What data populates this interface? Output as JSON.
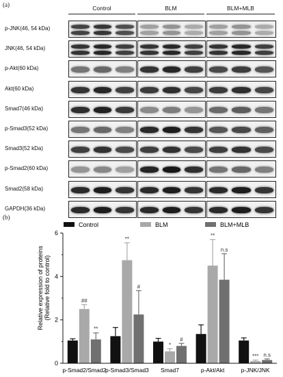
{
  "panel_a_label": "(a)",
  "panel_b_label": "(b)",
  "blot": {
    "groups": [
      "Control",
      "BLM",
      "BLM+MLB"
    ],
    "rows": [
      {
        "label": "p-JNK(46, 54 kDa)",
        "double": true,
        "darkness": [
          0.78,
          0.35,
          0.35
        ]
      },
      {
        "label": "JNK(46, 54 kDa)",
        "double": true,
        "darkness": [
          0.85,
          0.85,
          0.85
        ]
      },
      {
        "label": "p-Akt(60 kDa)",
        "double": false,
        "darkness": [
          0.55,
          0.85,
          0.75
        ]
      },
      {
        "label": "Akt(60 kDa)",
        "double": false,
        "darkness": [
          0.85,
          0.82,
          0.82
        ]
      },
      {
        "label": "Smad7(46 kDa)",
        "double": false,
        "darkness": [
          0.88,
          0.45,
          0.6
        ]
      },
      {
        "label": "p-Smad3(52 kDa)",
        "double": false,
        "darkness": [
          0.55,
          0.9,
          0.7
        ]
      },
      {
        "label": "Smad3(52 kDa)",
        "double": false,
        "darkness": [
          0.8,
          0.8,
          0.8
        ]
      },
      {
        "label": "p-Smad2(60 kDa)",
        "double": false,
        "darkness": [
          0.4,
          0.92,
          0.55
        ]
      },
      {
        "label": "Smad2(58 kDa)",
        "double": false,
        "darkness": [
          0.9,
          0.9,
          0.9
        ]
      },
      {
        "label": "GAPDH(36 kDa)",
        "double": false,
        "darkness": [
          0.9,
          0.9,
          0.9
        ]
      }
    ]
  },
  "chart_data": {
    "type": "bar",
    "ylabel": "Relative expression of proteins",
    "ylabel2": "(Relative fold to control)",
    "ylim": [
      0,
      6
    ],
    "yticks": [
      "0",
      "2",
      "4",
      "6"
    ],
    "categories": [
      "p-Smad2/Smad2",
      "p-Smad3/Smad3",
      "Smad7",
      "p-Akt/Akt",
      "p-JNK/JNK"
    ],
    "legend_position": "top",
    "series": [
      {
        "name": "Control",
        "color": "#111111",
        "values": [
          1.05,
          1.25,
          1.0,
          1.35,
          1.05
        ],
        "errors": [
          0.08,
          0.4,
          0.15,
          0.42,
          0.12
        ],
        "annotations": [
          "",
          "",
          "",
          "",
          ""
        ]
      },
      {
        "name": "BLM",
        "color": "#a9a9a9",
        "values": [
          2.5,
          4.75,
          0.55,
          4.5,
          0.1
        ],
        "errors": [
          0.2,
          0.8,
          0.12,
          1.2,
          0.05
        ],
        "annotations": [
          "##",
          "**",
          "*",
          "**",
          "***"
        ]
      },
      {
        "name": "BLM+MLB",
        "color": "#707070",
        "values": [
          1.1,
          2.25,
          0.8,
          3.85,
          0.15
        ],
        "errors": [
          0.3,
          1.1,
          0.12,
          1.2,
          0.05
        ],
        "annotations": [
          "**",
          "#",
          "#",
          "n.s",
          "n.s"
        ]
      }
    ]
  }
}
